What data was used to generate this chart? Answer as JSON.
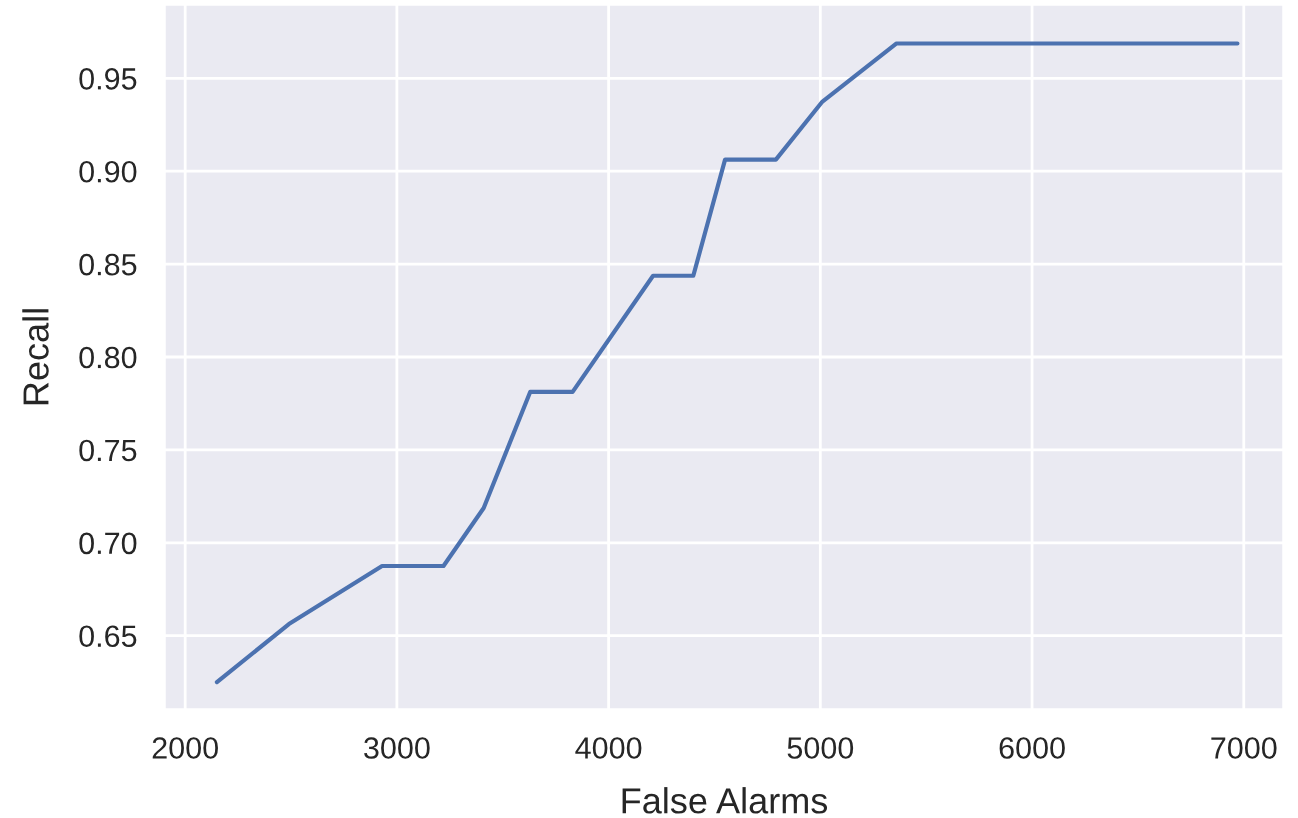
{
  "chart_data": {
    "type": "line",
    "xlabel": "False Alarms",
    "ylabel": "Recall",
    "x": [
      2150,
      2490,
      2930,
      3220,
      3410,
      3630,
      3830,
      4210,
      4400,
      4550,
      4790,
      5010,
      5360,
      6970
    ],
    "series": [
      {
        "color": "#4c72b0",
        "values": [
          0.625,
          0.65625,
          0.6875,
          0.6875,
          0.71875,
          0.78125,
          0.78125,
          0.84375,
          0.84375,
          0.90625,
          0.90625,
          0.9375,
          0.96875,
          0.96875
        ]
      }
    ],
    "xlim": [
      1900,
      7190
    ],
    "ylim": [
      0.61,
      0.99
    ],
    "xticks": [
      2000,
      3000,
      4000,
      5000,
      6000,
      7000
    ],
    "yticks": [
      {
        "value": 0.65,
        "label": "0.65"
      },
      {
        "value": 0.7,
        "label": "0.70"
      },
      {
        "value": 0.75,
        "label": "0.75"
      },
      {
        "value": 0.8,
        "label": "0.80"
      },
      {
        "value": 0.85,
        "label": "0.85"
      },
      {
        "value": 0.9,
        "label": "0.90"
      },
      {
        "value": 0.95,
        "label": "0.95"
      }
    ],
    "grid": true,
    "legend": false
  }
}
